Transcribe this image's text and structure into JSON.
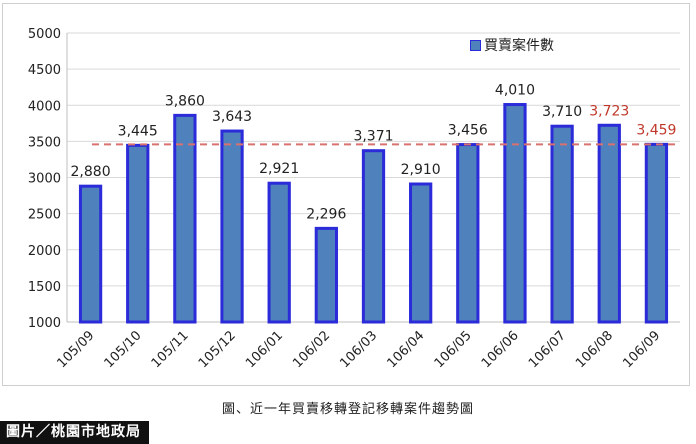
{
  "chart_data": {
    "type": "bar",
    "categories": [
      "105/09",
      "105/10",
      "105/11",
      "105/12",
      "106/01",
      "106/02",
      "106/03",
      "106/04",
      "106/05",
      "106/06",
      "106/07",
      "106/08",
      "106/09"
    ],
    "series": [
      {
        "name": "買賣案件數",
        "values": [
          2880,
          3445,
          3860,
          3643,
          2921,
          2296,
          3371,
          2910,
          3456,
          4010,
          3710,
          3723,
          3459
        ]
      }
    ],
    "data_labels": [
      "2,880",
      "3,445",
      "3,860",
      "3,643",
      "2,921",
      "2,296",
      "3,371",
      "2,910",
      "3,456",
      "4,010",
      "3,710",
      "3,723",
      "3,459"
    ],
    "highlighted_labels": [
      11,
      12
    ],
    "yticks": [
      1000,
      1500,
      2000,
      2500,
      3000,
      3500,
      4000,
      4500,
      5000
    ],
    "ytick_labels": [
      "1000",
      "1500",
      "2000",
      "2500",
      "3000",
      "3500",
      "4000",
      "4500",
      "5000"
    ],
    "ylim": [
      1000,
      5000
    ],
    "reference_line": 3459,
    "grid": "horizontal",
    "legend_position": "top-right",
    "colors": {
      "bar_fill": "#4f81bd",
      "bar_edge": "#2b2bd9",
      "label": "#222222",
      "highlight_label": "#c0392b",
      "reference_line": "#d9716e",
      "grid": "#d9d9d9"
    }
  },
  "caption": "圖、近一年買賣移轉登記移轉案件趨勢圖",
  "credit": "圖片／桃園市地政局"
}
